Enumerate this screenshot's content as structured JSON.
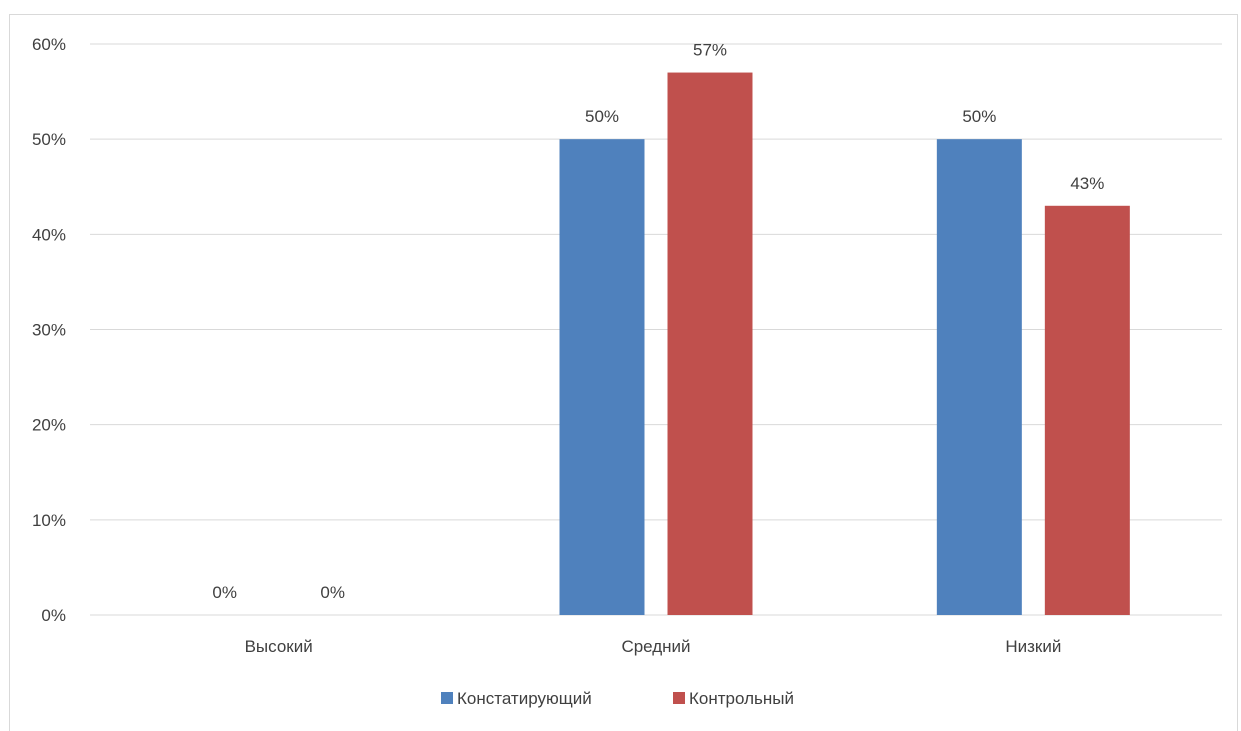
{
  "chart_data": {
    "type": "bar",
    "categories": [
      "Высокий",
      "Средний",
      "Низкий"
    ],
    "series": [
      {
        "name": "Констатирующий",
        "color": "#4f81bd",
        "values": [
          0,
          50,
          50
        ],
        "labels": [
          "0%",
          "50%",
          "50%"
        ]
      },
      {
        "name": "Контрольный",
        "color": "#c0504d",
        "values": [
          0,
          57,
          43
        ],
        "labels": [
          "0%",
          "57%",
          "43%"
        ]
      }
    ],
    "ylim": [
      0,
      60
    ],
    "yticks": [
      0,
      10,
      20,
      30,
      40,
      50,
      60
    ],
    "ytick_labels": [
      "0%",
      "10%",
      "20%",
      "30%",
      "40%",
      "50%",
      "60%"
    ],
    "grid": true,
    "legend_position": "bottom"
  }
}
